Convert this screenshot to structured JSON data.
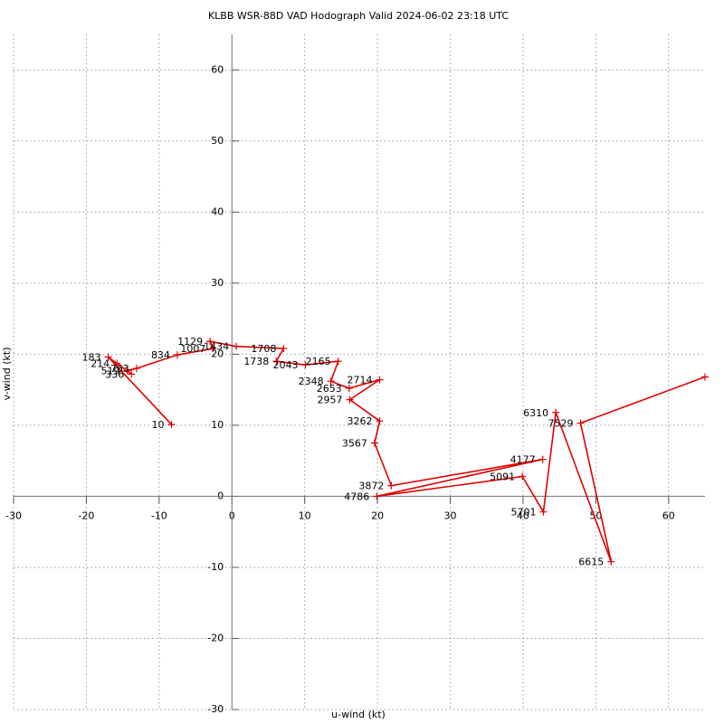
{
  "chart_data": {
    "type": "line",
    "title": "KLBB WSR-88D VAD Hodograph Valid 2024-06-02 23:18 UTC",
    "xlabel": "u-wind (kt)",
    "ylabel": "v-wind (kt)",
    "point_labels": [
      "10",
      "183",
      "214",
      "336",
      "519",
      "763",
      "834",
      "1007",
      "1129",
      "1434",
      "1708",
      "1738",
      "2043",
      "2165",
      "2348",
      "2653",
      "2714",
      "2957",
      "3262",
      "3567",
      "3872",
      "4177",
      "4786",
      "5091",
      "5701",
      "6310",
      "6615",
      "7529",
      null
    ],
    "x": [
      -8.3,
      -17.0,
      -15.8,
      -13.8,
      -14.4,
      -13.1,
      -7.5,
      -2.6,
      -3.0,
      0.6,
      7.1,
      6.1,
      10.1,
      14.6,
      13.6,
      16.1,
      20.3,
      16.2,
      20.3,
      19.6,
      21.9,
      42.7,
      19.9,
      39.9,
      42.8,
      44.5,
      52.1,
      47.9,
      65
    ],
    "values": [
      10.1,
      19.6,
      18.7,
      17.2,
      17.7,
      18.0,
      19.9,
      20.8,
      21.8,
      21.1,
      20.8,
      19.0,
      18.5,
      19.0,
      16.2,
      15.2,
      16.4,
      13.6,
      10.6,
      7.5,
      1.5,
      5.2,
      0,
      2.8,
      -2.2,
      11.8,
      -9.2,
      10.3,
      16.8
    ],
    "color": "#e00000",
    "xlim": [
      -30,
      65
    ],
    "ylim": [
      -30,
      65
    ],
    "xticks": [
      -30,
      -20,
      -10,
      0,
      10,
      20,
      30,
      40,
      50,
      60
    ],
    "yticks": [
      -30,
      -20,
      -10,
      0,
      10,
      20,
      30,
      40,
      50,
      60
    ],
    "grid": true
  }
}
